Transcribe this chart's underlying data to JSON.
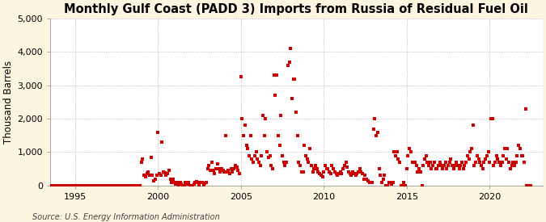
{
  "title": "Monthly Gulf Coast (PADD 3) Imports from Russia of Residual Fuel Oil",
  "ylabel": "Thousand Barrels",
  "source": "Source: U.S. Energy Information Administration",
  "outer_bg": "#fdf5e0",
  "plot_bg": "#ffffff",
  "marker_color": "#cc0000",
  "marker_size": 5,
  "xlim": [
    1993.5,
    2023.2
  ],
  "ylim": [
    0,
    5000
  ],
  "yticks": [
    0,
    1000,
    2000,
    3000,
    4000,
    5000
  ],
  "xticks": [
    1995,
    2000,
    2005,
    2010,
    2015,
    2020
  ],
  "title_fontsize": 10.5,
  "axis_fontsize": 8.5,
  "tick_fontsize": 8,
  "data": [
    [
      1993.0,
      0
    ],
    [
      1993.083,
      0
    ],
    [
      1993.167,
      0
    ],
    [
      1993.25,
      0
    ],
    [
      1993.333,
      0
    ],
    [
      1993.417,
      0
    ],
    [
      1993.5,
      0
    ],
    [
      1993.583,
      0
    ],
    [
      1993.667,
      0
    ],
    [
      1993.75,
      0
    ],
    [
      1993.833,
      0
    ],
    [
      1993.917,
      0
    ],
    [
      1994.0,
      0
    ],
    [
      1994.083,
      0
    ],
    [
      1994.167,
      0
    ],
    [
      1994.25,
      0
    ],
    [
      1994.333,
      0
    ],
    [
      1994.417,
      0
    ],
    [
      1994.5,
      0
    ],
    [
      1994.583,
      0
    ],
    [
      1994.667,
      0
    ],
    [
      1994.75,
      0
    ],
    [
      1994.833,
      0
    ],
    [
      1994.917,
      0
    ],
    [
      1995.0,
      0
    ],
    [
      1995.083,
      0
    ],
    [
      1995.167,
      0
    ],
    [
      1995.25,
      0
    ],
    [
      1995.333,
      0
    ],
    [
      1995.417,
      0
    ],
    [
      1995.5,
      0
    ],
    [
      1995.583,
      0
    ],
    [
      1995.667,
      0
    ],
    [
      1995.75,
      0
    ],
    [
      1995.833,
      0
    ],
    [
      1995.917,
      0
    ],
    [
      1996.0,
      0
    ],
    [
      1996.083,
      0
    ],
    [
      1996.167,
      0
    ],
    [
      1996.25,
      0
    ],
    [
      1996.333,
      0
    ],
    [
      1996.417,
      0
    ],
    [
      1996.5,
      0
    ],
    [
      1996.583,
      0
    ],
    [
      1996.667,
      0
    ],
    [
      1996.75,
      0
    ],
    [
      1996.833,
      0
    ],
    [
      1996.917,
      0
    ],
    [
      1997.0,
      0
    ],
    [
      1997.083,
      0
    ],
    [
      1997.167,
      0
    ],
    [
      1997.25,
      0
    ],
    [
      1997.333,
      0
    ],
    [
      1997.417,
      0
    ],
    [
      1997.5,
      0
    ],
    [
      1997.583,
      0
    ],
    [
      1997.667,
      0
    ],
    [
      1997.75,
      0
    ],
    [
      1997.833,
      0
    ],
    [
      1997.917,
      0
    ],
    [
      1998.0,
      0
    ],
    [
      1998.083,
      0
    ],
    [
      1998.167,
      0
    ],
    [
      1998.25,
      0
    ],
    [
      1998.333,
      0
    ],
    [
      1998.417,
      0
    ],
    [
      1998.5,
      0
    ],
    [
      1998.583,
      0
    ],
    [
      1998.667,
      0
    ],
    [
      1998.75,
      0
    ],
    [
      1998.833,
      0
    ],
    [
      1998.917,
      0
    ],
    [
      1999.0,
      700
    ],
    [
      1999.083,
      800
    ],
    [
      1999.167,
      300
    ],
    [
      1999.25,
      250
    ],
    [
      1999.333,
      350
    ],
    [
      1999.417,
      400
    ],
    [
      1999.5,
      300
    ],
    [
      1999.583,
      850
    ],
    [
      1999.667,
      300
    ],
    [
      1999.75,
      150
    ],
    [
      1999.833,
      200
    ],
    [
      1999.917,
      300
    ],
    [
      2000.0,
      1600
    ],
    [
      2000.083,
      350
    ],
    [
      2000.167,
      300
    ],
    [
      2000.25,
      1300
    ],
    [
      2000.333,
      400
    ],
    [
      2000.417,
      380
    ],
    [
      2000.5,
      300
    ],
    [
      2000.583,
      350
    ],
    [
      2000.667,
      450
    ],
    [
      2000.75,
      200
    ],
    [
      2000.833,
      100
    ],
    [
      2000.917,
      200
    ],
    [
      2001.0,
      100
    ],
    [
      2001.083,
      50
    ],
    [
      2001.167,
      100
    ],
    [
      2001.25,
      0
    ],
    [
      2001.333,
      80
    ],
    [
      2001.417,
      50
    ],
    [
      2001.5,
      0
    ],
    [
      2001.583,
      0
    ],
    [
      2001.667,
      80
    ],
    [
      2001.75,
      50
    ],
    [
      2001.833,
      100
    ],
    [
      2001.917,
      0
    ],
    [
      2002.0,
      0
    ],
    [
      2002.083,
      0
    ],
    [
      2002.167,
      50
    ],
    [
      2002.25,
      80
    ],
    [
      2002.333,
      120
    ],
    [
      2002.417,
      100
    ],
    [
      2002.5,
      0
    ],
    [
      2002.583,
      100
    ],
    [
      2002.667,
      80
    ],
    [
      2002.75,
      0
    ],
    [
      2002.833,
      60
    ],
    [
      2002.917,
      80
    ],
    [
      2003.0,
      500
    ],
    [
      2003.083,
      600
    ],
    [
      2003.167,
      450
    ],
    [
      2003.25,
      700
    ],
    [
      2003.333,
      450
    ],
    [
      2003.417,
      350
    ],
    [
      2003.5,
      500
    ],
    [
      2003.583,
      650
    ],
    [
      2003.667,
      500
    ],
    [
      2003.75,
      400
    ],
    [
      2003.833,
      500
    ],
    [
      2003.917,
      450
    ],
    [
      2004.0,
      400
    ],
    [
      2004.083,
      1500
    ],
    [
      2004.167,
      400
    ],
    [
      2004.25,
      450
    ],
    [
      2004.333,
      350
    ],
    [
      2004.417,
      500
    ],
    [
      2004.5,
      400
    ],
    [
      2004.583,
      500
    ],
    [
      2004.667,
      600
    ],
    [
      2004.75,
      550
    ],
    [
      2004.833,
      450
    ],
    [
      2004.917,
      350
    ],
    [
      2005.0,
      3250
    ],
    [
      2005.083,
      2000
    ],
    [
      2005.167,
      1500
    ],
    [
      2005.25,
      1800
    ],
    [
      2005.333,
      1200
    ],
    [
      2005.417,
      1100
    ],
    [
      2005.5,
      900
    ],
    [
      2005.583,
      1500
    ],
    [
      2005.667,
      800
    ],
    [
      2005.75,
      700
    ],
    [
      2005.833,
      900
    ],
    [
      2005.917,
      1000
    ],
    [
      2006.0,
      800
    ],
    [
      2006.083,
      700
    ],
    [
      2006.167,
      600
    ],
    [
      2006.25,
      900
    ],
    [
      2006.333,
      2100
    ],
    [
      2006.417,
      1500
    ],
    [
      2006.5,
      2000
    ],
    [
      2006.583,
      1000
    ],
    [
      2006.667,
      850
    ],
    [
      2006.75,
      900
    ],
    [
      2006.833,
      600
    ],
    [
      2006.917,
      500
    ],
    [
      2007.0,
      3300
    ],
    [
      2007.083,
      2700
    ],
    [
      2007.167,
      3300
    ],
    [
      2007.25,
      1500
    ],
    [
      2007.333,
      1200
    ],
    [
      2007.417,
      2100
    ],
    [
      2007.5,
      900
    ],
    [
      2007.583,
      700
    ],
    [
      2007.667,
      600
    ],
    [
      2007.75,
      700
    ],
    [
      2007.833,
      3600
    ],
    [
      2007.917,
      3700
    ],
    [
      2008.0,
      4100
    ],
    [
      2008.083,
      2600
    ],
    [
      2008.167,
      3200
    ],
    [
      2008.25,
      3200
    ],
    [
      2008.333,
      2200
    ],
    [
      2008.417,
      1500
    ],
    [
      2008.5,
      700
    ],
    [
      2008.583,
      600
    ],
    [
      2008.667,
      400
    ],
    [
      2008.75,
      400
    ],
    [
      2008.833,
      1200
    ],
    [
      2008.917,
      900
    ],
    [
      2009.0,
      800
    ],
    [
      2009.083,
      700
    ],
    [
      2009.167,
      1100
    ],
    [
      2009.25,
      600
    ],
    [
      2009.333,
      400
    ],
    [
      2009.417,
      500
    ],
    [
      2009.5,
      600
    ],
    [
      2009.583,
      500
    ],
    [
      2009.667,
      400
    ],
    [
      2009.75,
      350
    ],
    [
      2009.833,
      300
    ],
    [
      2009.917,
      250
    ],
    [
      2010.0,
      400
    ],
    [
      2010.083,
      600
    ],
    [
      2010.167,
      500
    ],
    [
      2010.25,
      500
    ],
    [
      2010.333,
      400
    ],
    [
      2010.417,
      350
    ],
    [
      2010.5,
      600
    ],
    [
      2010.583,
      500
    ],
    [
      2010.667,
      400
    ],
    [
      2010.75,
      350
    ],
    [
      2010.833,
      300
    ],
    [
      2010.917,
      350
    ],
    [
      2011.0,
      400
    ],
    [
      2011.083,
      350
    ],
    [
      2011.167,
      500
    ],
    [
      2011.25,
      600
    ],
    [
      2011.333,
      700
    ],
    [
      2011.417,
      550
    ],
    [
      2011.5,
      400
    ],
    [
      2011.583,
      350
    ],
    [
      2011.667,
      300
    ],
    [
      2011.75,
      400
    ],
    [
      2011.833,
      350
    ],
    [
      2011.917,
      300
    ],
    [
      2012.0,
      350
    ],
    [
      2012.083,
      400
    ],
    [
      2012.167,
      500
    ],
    [
      2012.25,
      400
    ],
    [
      2012.333,
      350
    ],
    [
      2012.417,
      200
    ],
    [
      2012.5,
      300
    ],
    [
      2012.583,
      200
    ],
    [
      2012.667,
      150
    ],
    [
      2012.75,
      100
    ],
    [
      2012.833,
      100
    ],
    [
      2012.917,
      100
    ],
    [
      2013.0,
      1700
    ],
    [
      2013.083,
      2000
    ],
    [
      2013.167,
      1500
    ],
    [
      2013.25,
      1600
    ],
    [
      2013.333,
      500
    ],
    [
      2013.417,
      300
    ],
    [
      2013.5,
      100
    ],
    [
      2013.583,
      200
    ],
    [
      2013.667,
      300
    ],
    [
      2013.75,
      0
    ],
    [
      2013.833,
      0
    ],
    [
      2013.917,
      100
    ],
    [
      2014.0,
      100
    ],
    [
      2014.083,
      50
    ],
    [
      2014.167,
      100
    ],
    [
      2014.25,
      1000
    ],
    [
      2014.333,
      900
    ],
    [
      2014.417,
      1000
    ],
    [
      2014.5,
      800
    ],
    [
      2014.583,
      700
    ],
    [
      2014.667,
      0
    ],
    [
      2014.75,
      0
    ],
    [
      2014.833,
      100
    ],
    [
      2014.917,
      0
    ],
    [
      2015.0,
      500
    ],
    [
      2015.083,
      900
    ],
    [
      2015.167,
      1100
    ],
    [
      2015.25,
      1000
    ],
    [
      2015.333,
      700
    ],
    [
      2015.417,
      700
    ],
    [
      2015.5,
      700
    ],
    [
      2015.583,
      600
    ],
    [
      2015.667,
      400
    ],
    [
      2015.75,
      500
    ],
    [
      2015.833,
      400
    ],
    [
      2015.917,
      0
    ],
    [
      2016.0,
      600
    ],
    [
      2016.083,
      800
    ],
    [
      2016.167,
      900
    ],
    [
      2016.25,
      700
    ],
    [
      2016.333,
      600
    ],
    [
      2016.417,
      700
    ],
    [
      2016.5,
      500
    ],
    [
      2016.583,
      600
    ],
    [
      2016.667,
      700
    ],
    [
      2016.75,
      500
    ],
    [
      2016.833,
      500
    ],
    [
      2016.917,
      600
    ],
    [
      2017.0,
      700
    ],
    [
      2017.083,
      600
    ],
    [
      2017.167,
      500
    ],
    [
      2017.25,
      600
    ],
    [
      2017.333,
      700
    ],
    [
      2017.417,
      500
    ],
    [
      2017.5,
      600
    ],
    [
      2017.583,
      700
    ],
    [
      2017.667,
      800
    ],
    [
      2017.75,
      600
    ],
    [
      2017.833,
      500
    ],
    [
      2017.917,
      600
    ],
    [
      2018.0,
      700
    ],
    [
      2018.083,
      600
    ],
    [
      2018.167,
      500
    ],
    [
      2018.25,
      600
    ],
    [
      2018.333,
      700
    ],
    [
      2018.417,
      500
    ],
    [
      2018.5,
      600
    ],
    [
      2018.583,
      700
    ],
    [
      2018.667,
      900
    ],
    [
      2018.75,
      800
    ],
    [
      2018.833,
      1000
    ],
    [
      2018.917,
      1100
    ],
    [
      2019.0,
      1800
    ],
    [
      2019.083,
      600
    ],
    [
      2019.167,
      700
    ],
    [
      2019.25,
      900
    ],
    [
      2019.333,
      800
    ],
    [
      2019.417,
      700
    ],
    [
      2019.5,
      600
    ],
    [
      2019.583,
      500
    ],
    [
      2019.667,
      700
    ],
    [
      2019.75,
      800
    ],
    [
      2019.833,
      900
    ],
    [
      2019.917,
      1000
    ],
    [
      2020.0,
      700
    ],
    [
      2020.083,
      2000
    ],
    [
      2020.167,
      2000
    ],
    [
      2020.25,
      600
    ],
    [
      2020.333,
      700
    ],
    [
      2020.417,
      900
    ],
    [
      2020.5,
      800
    ],
    [
      2020.583,
      700
    ],
    [
      2020.667,
      600
    ],
    [
      2020.75,
      700
    ],
    [
      2020.833,
      900
    ],
    [
      2020.917,
      1100
    ],
    [
      2021.0,
      800
    ],
    [
      2021.083,
      1100
    ],
    [
      2021.167,
      700
    ],
    [
      2021.25,
      500
    ],
    [
      2021.333,
      600
    ],
    [
      2021.417,
      700
    ],
    [
      2021.5,
      600
    ],
    [
      2021.583,
      700
    ],
    [
      2021.667,
      900
    ],
    [
      2021.75,
      1200
    ],
    [
      2021.833,
      1100
    ],
    [
      2021.917,
      900
    ],
    [
      2022.0,
      900
    ],
    [
      2022.083,
      700
    ],
    [
      2022.167,
      2300
    ],
    [
      2022.25,
      0
    ],
    [
      2022.333,
      0
    ],
    [
      2022.417,
      0
    ],
    [
      2022.5,
      0
    ]
  ]
}
